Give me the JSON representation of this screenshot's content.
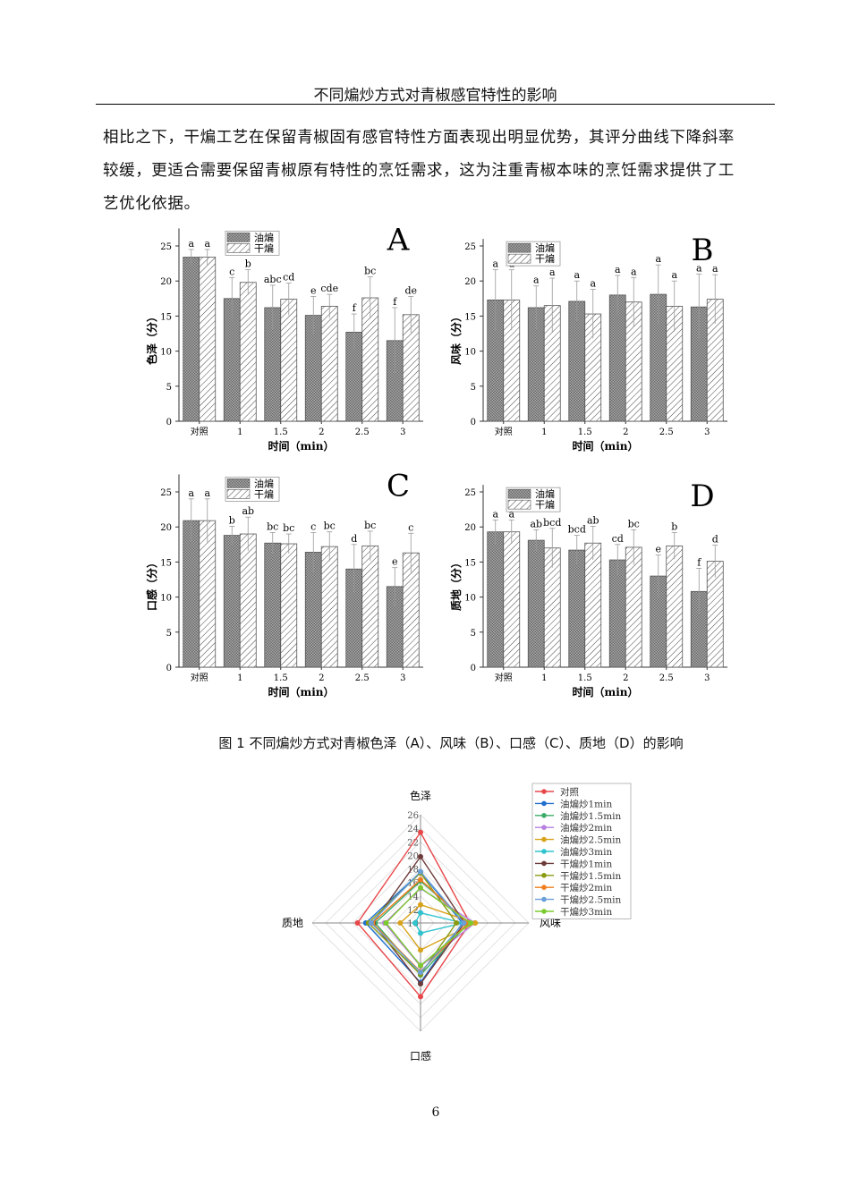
{
  "header": {
    "title": "不同煸炒方式对青椒感官特性的影响"
  },
  "paragraph": {
    "lines": [
      "相比之下，干煸工艺在保留青椒固有感官特性方面表现出明显优势，其评分曲线下降斜率",
      "较缓，更适合需要保留青椒原有特性的烹饪需求，这为注重青椒本味的烹饪需求提供了工",
      "艺优化依据。"
    ]
  },
  "chart_data": [
    {
      "type": "bar",
      "panel": "A",
      "ylabel": "色泽（分）",
      "xlabel": "时间（min）",
      "categories": [
        "对照",
        "1",
        "1.5",
        "2",
        "2.5",
        "3"
      ],
      "ylim": [
        0,
        27.5
      ],
      "yticks": [
        0,
        5,
        10,
        15,
        20,
        25
      ],
      "legend_position": "top-center",
      "series": [
        {
          "name": "油煸",
          "pattern": "crosshatch",
          "values": [
            23.4,
            17.5,
            16.2,
            15.1,
            12.7,
            11.5
          ],
          "errors": [
            1.1,
            3.0,
            3.2,
            2.7,
            2.6,
            4.7
          ],
          "letters": [
            "a",
            "c",
            "abc",
            "e",
            "f",
            "f"
          ]
        },
        {
          "name": "干煸",
          "pattern": "diagonal",
          "values": [
            23.4,
            19.8,
            17.4,
            16.4,
            17.6,
            15.2
          ],
          "errors": [
            1.1,
            1.8,
            2.3,
            1.7,
            3.0,
            2.6
          ],
          "letters": [
            "a",
            "b",
            "cd",
            "cde",
            "bc",
            "de"
          ]
        }
      ]
    },
    {
      "type": "bar",
      "panel": "B",
      "ylabel": "风味（分）",
      "xlabel": "时间（min）",
      "categories": [
        "对照",
        "1",
        "1.5",
        "2",
        "2.5",
        "3"
      ],
      "ylim": [
        0,
        26
      ],
      "yticks": [
        0,
        5,
        10,
        15,
        20,
        25
      ],
      "legend_position": "top-left",
      "series": [
        {
          "name": "油煸",
          "pattern": "crosshatch",
          "values": [
            17.3,
            16.2,
            17.1,
            18.0,
            18.1,
            16.3
          ],
          "errors": [
            4.3,
            3.1,
            2.9,
            2.8,
            4.2,
            4.7
          ],
          "letters": [
            "a",
            "a",
            "a",
            "a",
            "a",
            "a"
          ]
        },
        {
          "name": "干煸",
          "pattern": "diagonal",
          "values": [
            17.3,
            16.5,
            15.3,
            17.0,
            16.4,
            17.4
          ],
          "errors": [
            4.3,
            3.9,
            3.5,
            3.5,
            3.6,
            3.5
          ],
          "letters": [
            "a",
            "a",
            "a",
            "a",
            "a",
            "a"
          ]
        }
      ]
    },
    {
      "type": "bar",
      "panel": "C",
      "ylabel": "口感（分）",
      "xlabel": "时间（min）",
      "categories": [
        "对照",
        "1",
        "1.5",
        "2",
        "2.5",
        "3"
      ],
      "ylim": [
        0,
        27.5
      ],
      "yticks": [
        0,
        5,
        10,
        15,
        20,
        25
      ],
      "legend_position": "top-center",
      "series": [
        {
          "name": "油煸",
          "pattern": "crosshatch",
          "values": [
            20.9,
            18.8,
            17.7,
            16.4,
            14.0,
            11.5
          ],
          "errors": [
            3.1,
            1.3,
            1.5,
            2.8,
            3.5,
            2.7
          ],
          "letters": [
            "a",
            "b",
            "bc",
            "c",
            "d",
            "e"
          ]
        },
        {
          "name": "干煸",
          "pattern": "diagonal",
          "values": [
            20.9,
            19.0,
            17.6,
            17.2,
            17.3,
            16.3
          ],
          "errors": [
            3.1,
            2.4,
            1.4,
            2.1,
            2.1,
            2.8
          ],
          "letters": [
            "a",
            "ab",
            "bc",
            "bc",
            "bc",
            "c"
          ]
        }
      ]
    },
    {
      "type": "bar",
      "panel": "D",
      "ylabel": "质地（分）",
      "xlabel": "时间（min）",
      "categories": [
        "对照",
        "1",
        "1.5",
        "2",
        "2.5",
        "3"
      ],
      "ylim": [
        0,
        26
      ],
      "yticks": [
        0,
        5,
        10,
        15,
        20,
        25
      ],
      "legend_position": "top-left",
      "series": [
        {
          "name": "油煸",
          "pattern": "crosshatch",
          "values": [
            19.3,
            18.1,
            16.7,
            15.3,
            13.0,
            10.8
          ],
          "errors": [
            1.7,
            1.5,
            2.1,
            2.2,
            3.0,
            3.3
          ],
          "letters": [
            "a",
            "ab",
            "bcd",
            "cd",
            "e",
            "f"
          ]
        },
        {
          "name": "干煸",
          "pattern": "diagonal",
          "values": [
            19.3,
            17.0,
            17.7,
            17.1,
            17.3,
            15.1
          ],
          "errors": [
            1.7,
            2.8,
            2.4,
            2.5,
            1.9,
            2.3
          ],
          "letters": [
            "a",
            "bcd",
            "ab",
            "bc",
            "b",
            "d"
          ]
        }
      ]
    },
    {
      "type": "radar",
      "axes": [
        "色泽",
        "风味",
        "口感",
        "质地"
      ],
      "rlim": [
        10,
        26
      ],
      "rticks": [
        10,
        12,
        14,
        16,
        18,
        20,
        22,
        24,
        26
      ],
      "legend_position": "top-right",
      "grid": true,
      "series": [
        {
          "name": "对照",
          "color": "#e8474a",
          "marker": "square",
          "values": [
            23.4,
            17.3,
            20.9,
            19.3
          ]
        },
        {
          "name": "油煸炒1min",
          "color": "#1f6fd0",
          "marker": "circle",
          "values": [
            17.5,
            16.2,
            18.8,
            18.1
          ]
        },
        {
          "name": "油煸炒1.5min",
          "color": "#3cab6a",
          "marker": "triangle-up",
          "values": [
            16.2,
            17.1,
            17.7,
            16.7
          ]
        },
        {
          "name": "油煸炒2min",
          "color": "#b77fe0",
          "marker": "triangle-down",
          "values": [
            15.1,
            18.0,
            16.4,
            15.3
          ]
        },
        {
          "name": "油煸炒2.5min",
          "color": "#d8a21a",
          "marker": "diamond",
          "values": [
            12.7,
            18.1,
            14.0,
            13.0
          ]
        },
        {
          "name": "油煸炒3min",
          "color": "#2ec3cf",
          "marker": "triangle-left",
          "values": [
            11.5,
            16.3,
            11.5,
            10.8
          ]
        },
        {
          "name": "干煸炒1min",
          "color": "#6e3b3b",
          "marker": "triangle-right",
          "values": [
            19.8,
            16.5,
            19.0,
            17.0
          ]
        },
        {
          "name": "干煸炒1.5min",
          "color": "#8a9a10",
          "marker": "hexagon",
          "values": [
            17.4,
            15.3,
            17.6,
            17.7
          ]
        },
        {
          "name": "干煸炒2min",
          "color": "#f07c1c",
          "marker": "star",
          "values": [
            16.4,
            17.0,
            17.2,
            17.1
          ]
        },
        {
          "name": "干煸炒2.5min",
          "color": "#6a9fd8",
          "marker": "pentagon",
          "values": [
            17.6,
            16.4,
            17.3,
            17.3
          ]
        },
        {
          "name": "干煸炒3min",
          "color": "#7ccb2e",
          "marker": "circle-dot",
          "values": [
            15.2,
            17.4,
            16.3,
            15.1
          ]
        }
      ]
    }
  ],
  "figure": {
    "caption": "图 1  不同煸炒方式对青椒色泽（A）、风味（B）、口感（C）、质地（D）的影响"
  },
  "page": {
    "number": "6"
  }
}
